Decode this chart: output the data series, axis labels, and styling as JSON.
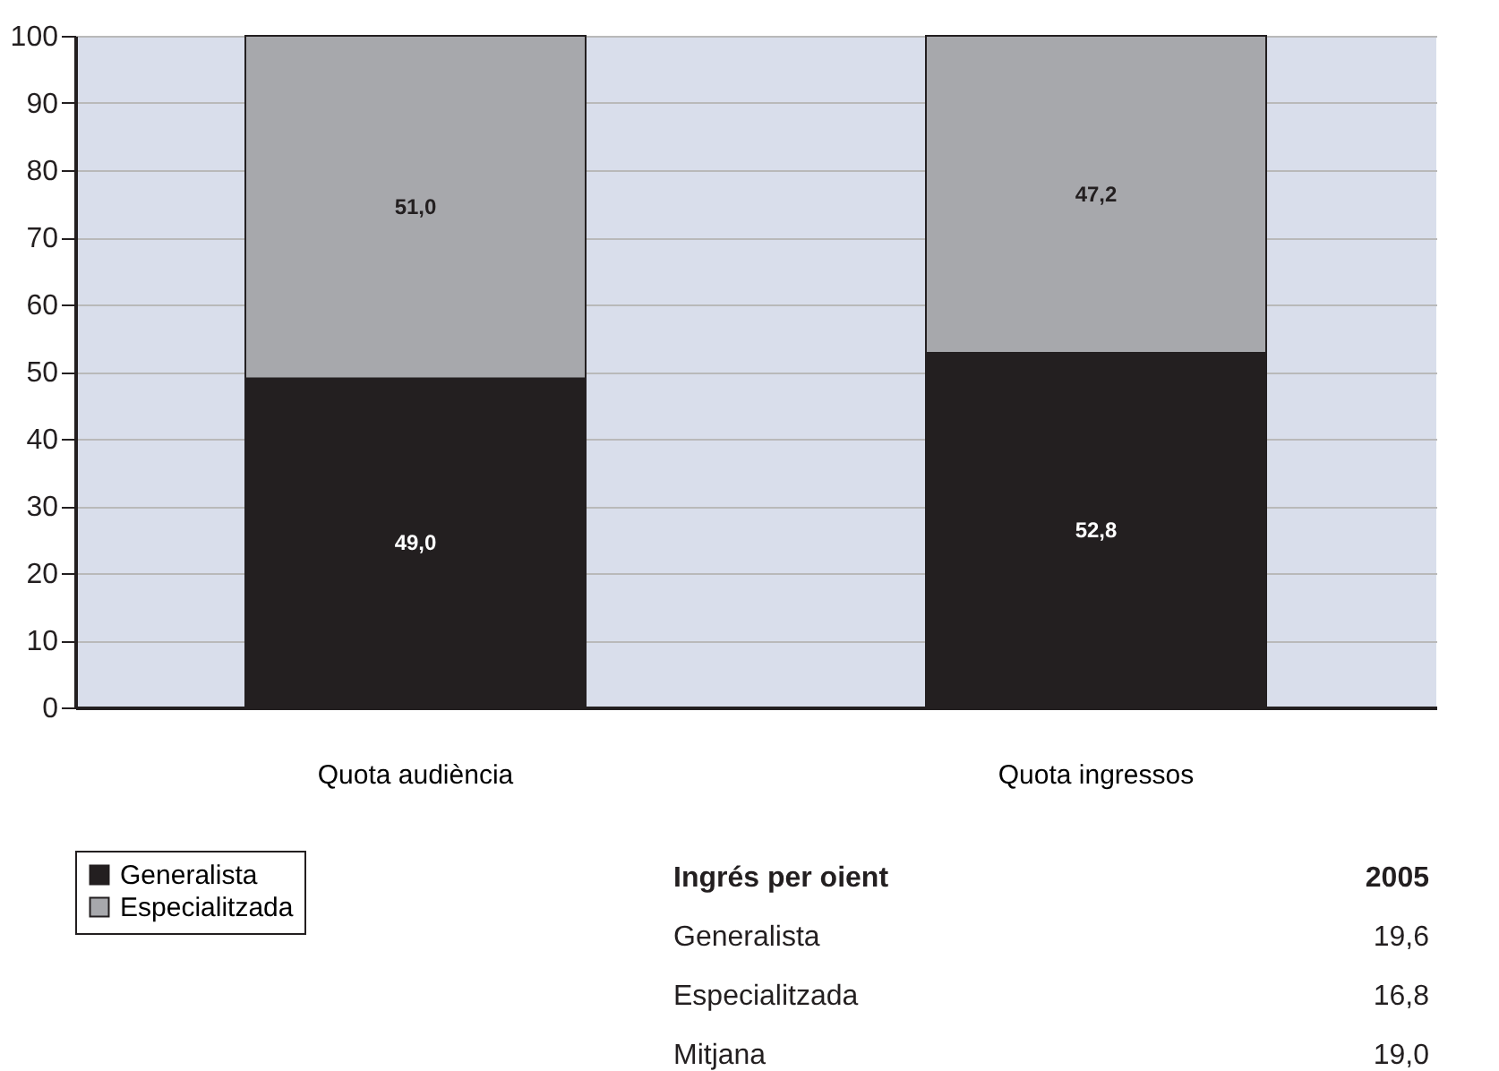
{
  "chart_data": {
    "type": "bar",
    "stacked": true,
    "categories": [
      "Quota audiència",
      "Quota ingressos"
    ],
    "series": [
      {
        "name": "Generalista",
        "color": "#231f20",
        "values": [
          49.0,
          52.8
        ],
        "value_labels": [
          "49,0",
          "52,8"
        ]
      },
      {
        "name": "Especialitzada",
        "color": "#a7a8ac",
        "values": [
          51.0,
          47.2
        ],
        "value_labels": [
          "51,0",
          "47,2"
        ]
      }
    ],
    "ylim": [
      0,
      100
    ],
    "yticks": [
      0,
      10,
      20,
      30,
      40,
      50,
      60,
      70,
      80,
      90,
      100
    ],
    "grid": "y",
    "legend": "bottom left",
    "annotations": [
      "Ingrés per oient",
      "2005",
      "Generalista",
      "19,6",
      "Especialitzada",
      "16,8",
      "Mitjana",
      "19,0"
    ]
  }
}
